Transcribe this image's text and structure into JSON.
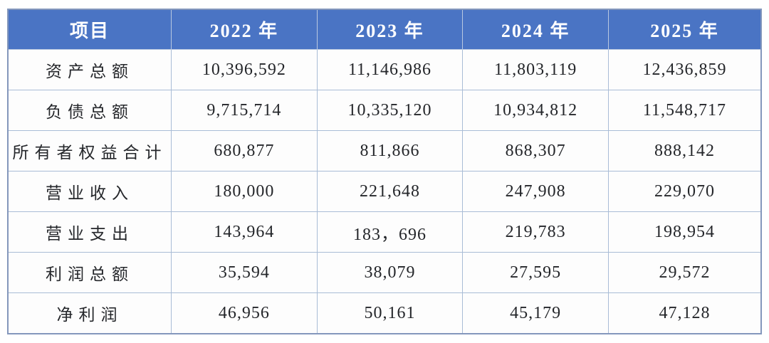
{
  "table": {
    "columns": [
      "项目",
      "2022 年",
      "2023 年",
      "2024 年",
      "2025 年"
    ],
    "rows": [
      {
        "label": "资产总额",
        "values": [
          "10,396,592",
          "11,146,986",
          "11,803,119",
          "12,436,859"
        ]
      },
      {
        "label": "负债总额",
        "values": [
          "9,715,714",
          "10,335,120",
          "10,934,812",
          "11,548,717"
        ]
      },
      {
        "label": "所有者权益合计",
        "values": [
          "680,877",
          "811,866",
          "868,307",
          "888,142"
        ]
      },
      {
        "label": "营业收入",
        "values": [
          "180,000",
          "221,648",
          "247,908",
          "229,070"
        ]
      },
      {
        "label": "营业支出",
        "values": [
          "143,964",
          "183，696",
          "219,783",
          "198,954"
        ]
      },
      {
        "label": "利润总额",
        "values": [
          "35,594",
          "38,079",
          "27,595",
          "29,572"
        ]
      },
      {
        "label": "净利润",
        "values": [
          "46,956",
          "50,161",
          "45,179",
          "47,128"
        ]
      }
    ],
    "colors": {
      "header_bg": "#4a74c4",
      "header_text": "#ffffff",
      "border_outer": "#8497bc",
      "border_inner": "#a9bcd6",
      "cell_text": "#24262a",
      "cell_bg": "#fdfdfd"
    },
    "column_widths_pct": [
      21.7,
      19.34,
      19.34,
      19.34,
      20.28
    ]
  },
  "chart_data": {
    "type": "table",
    "title": "",
    "categories": [
      "2022",
      "2023",
      "2024",
      "2025"
    ],
    "row_header_label": "项目",
    "series": [
      {
        "name": "资产总额",
        "values": [
          10396592,
          11146986,
          11803119,
          12436859
        ]
      },
      {
        "name": "负债总额",
        "values": [
          9715714,
          10335120,
          10934812,
          11548717
        ]
      },
      {
        "name": "所有者权益合计",
        "values": [
          680877,
          811866,
          868307,
          888142
        ]
      },
      {
        "name": "营业收入",
        "values": [
          180000,
          221648,
          247908,
          229070
        ]
      },
      {
        "name": "营业支出",
        "values": [
          143964,
          183696,
          219783,
          198954
        ]
      },
      {
        "name": "利润总额",
        "values": [
          35594,
          38079,
          27595,
          29572
        ]
      },
      {
        "name": "净利润",
        "values": [
          46956,
          50161,
          45179,
          47128
        ]
      }
    ]
  }
}
